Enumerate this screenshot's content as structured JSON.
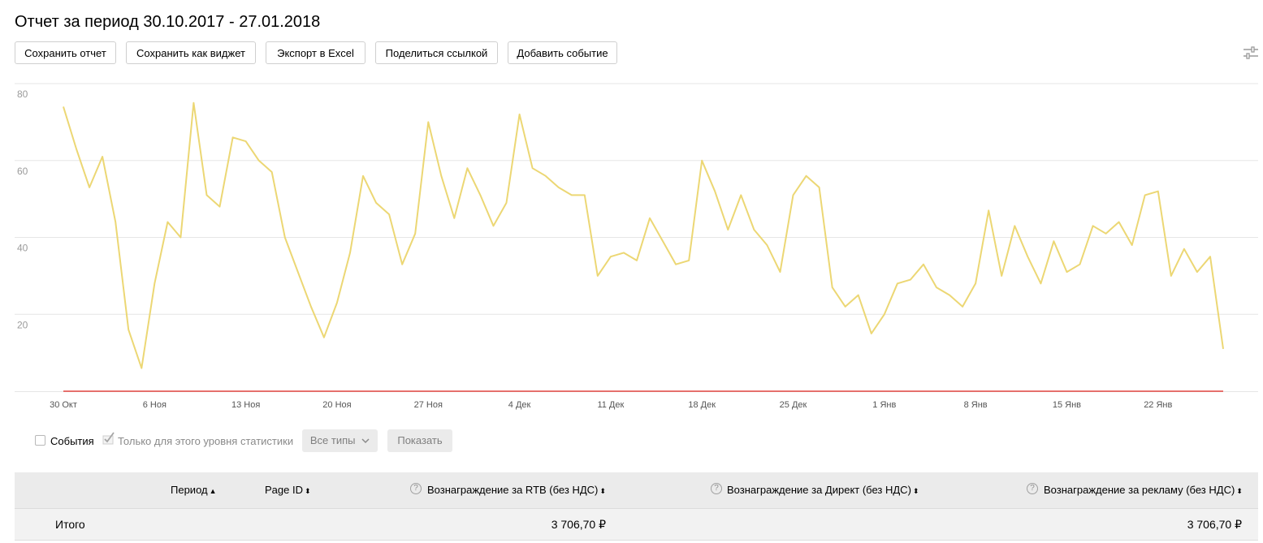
{
  "title": "Отчет за период 30.10.2017 - 27.01.2018",
  "toolbar": {
    "save_report": "Сохранить отчет",
    "save_widget": "Сохранить как виджет",
    "export_excel": "Экспорт в Excel",
    "share_link": "Поделиться ссылкой",
    "add_event": "Добавить событие",
    "settings_icon": "sliders-icon"
  },
  "chart_data": {
    "type": "line",
    "ylim": [
      0,
      80
    ],
    "y_ticks": [
      20,
      40,
      60,
      80
    ],
    "x_ticks": [
      "30 Окт",
      "6 Ноя",
      "13 Ноя",
      "20 Ноя",
      "27 Ноя",
      "4 Дек",
      "11 Дек",
      "18 Дек",
      "25 Дек",
      "1 Янв",
      "8 Янв",
      "15 Янв",
      "22 Янв"
    ],
    "x_start": "2017-10-30",
    "x_end": "2018-01-27",
    "grid": true,
    "series": [
      {
        "color": "#ecd774",
        "values": [
          74,
          63,
          53,
          61,
          44,
          16,
          6,
          28,
          44,
          40,
          75,
          51,
          48,
          66,
          65,
          60,
          57,
          40,
          31,
          22,
          14,
          23,
          36,
          56,
          49,
          46,
          33,
          41,
          70,
          56,
          45,
          58,
          51,
          43,
          49,
          72,
          58,
          56,
          53,
          51,
          51,
          30,
          35,
          36,
          34,
          45,
          39,
          33,
          34,
          60,
          52,
          42,
          51,
          42,
          38,
          31,
          51,
          56,
          53,
          27,
          22,
          25,
          15,
          20,
          28,
          29,
          33,
          27,
          25,
          22,
          28,
          47,
          30,
          43,
          35,
          28,
          39,
          31,
          33,
          43,
          41,
          44,
          38,
          51,
          52,
          30,
          37,
          31,
          35,
          11
        ]
      },
      {
        "color": "#e0231f",
        "values": [
          0,
          0
        ]
      }
    ]
  },
  "events": {
    "events_label": "События",
    "level_only_label": "Только для этого уровня статистики",
    "all_types": "Все типы",
    "show": "Показать"
  },
  "table": {
    "headers": {
      "period": "Период",
      "page_id": "Page ID",
      "rtb": "Вознаграждение за RTB (без НДС)",
      "direct": "Вознаграждение за Директ (без НДС)",
      "ads": "Вознаграждение за рекламу (без НДС)"
    },
    "sort_asc": "▲",
    "sort_both": "⬍",
    "total_row": {
      "label": "Итого",
      "rtb": "3 706,70 ₽",
      "ads": "3 706,70 ₽"
    }
  }
}
